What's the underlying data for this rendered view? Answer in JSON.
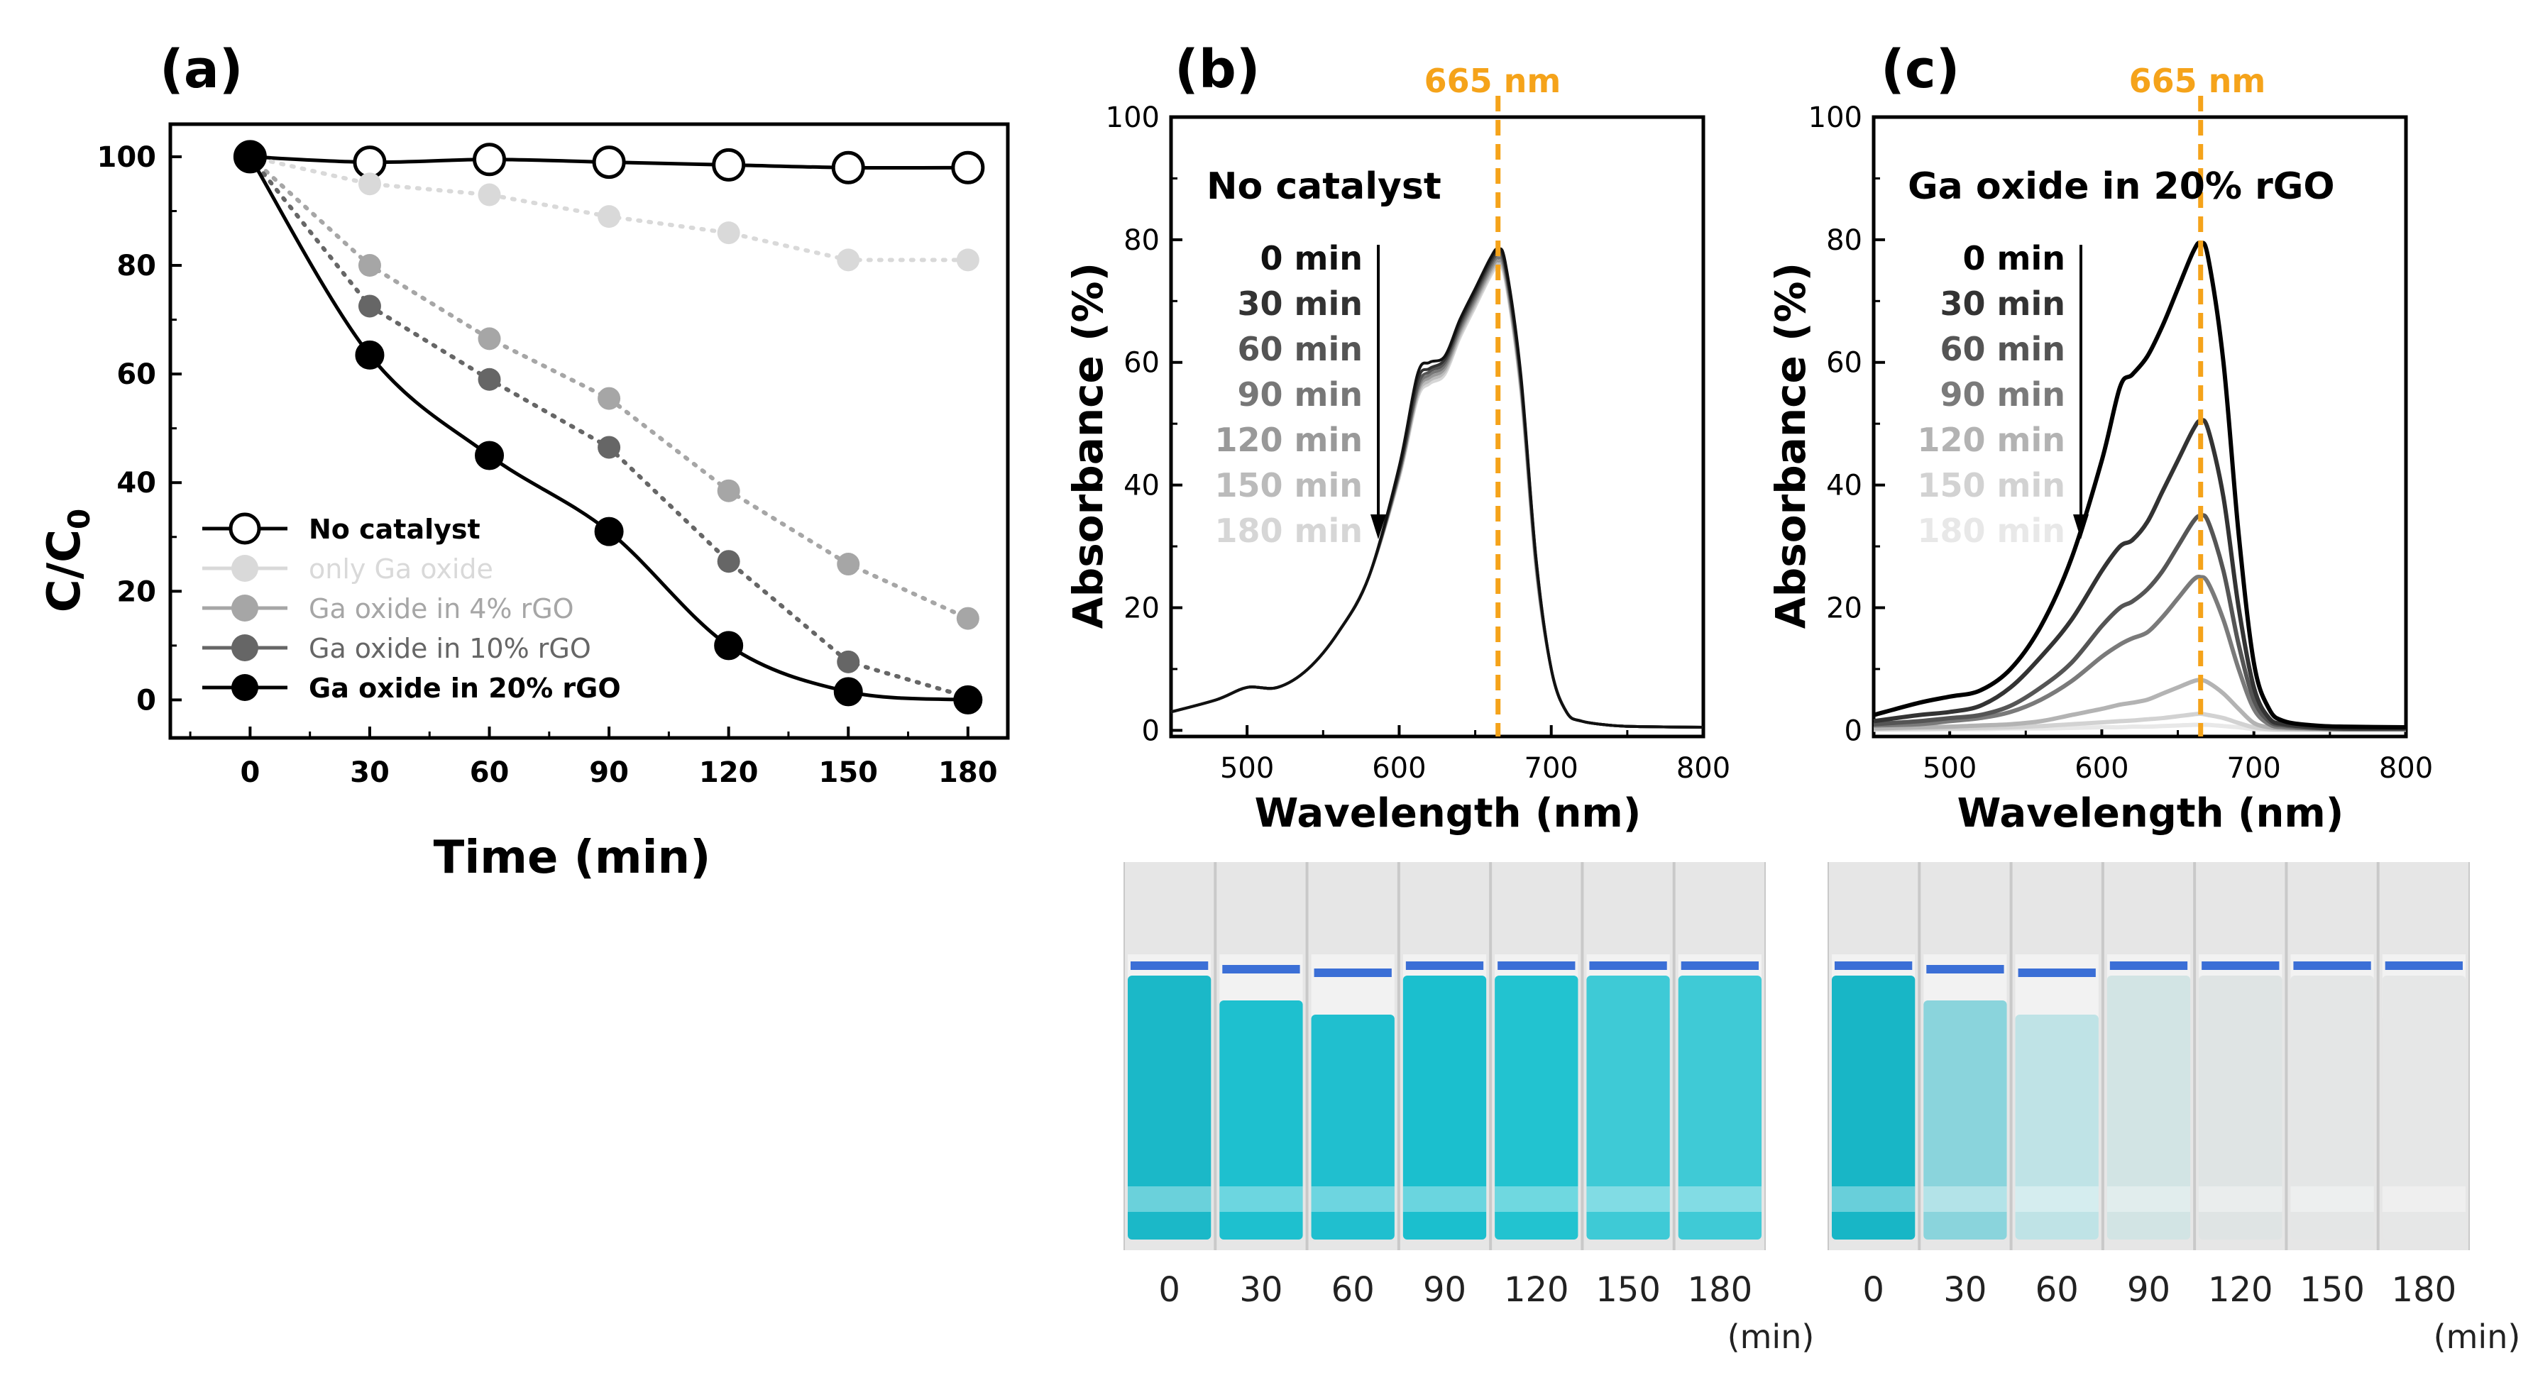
{
  "chart_data": [
    {
      "type": "line",
      "panel_label": "(a)",
      "xlabel": "Time (min)",
      "ylabel": "C/C",
      "ylabel_subscript": "0",
      "xlim": [
        -20,
        190
      ],
      "ylim": [
        -7,
        106
      ],
      "xticks": [
        0,
        30,
        60,
        90,
        120,
        150,
        180
      ],
      "yticks": [
        0,
        20,
        40,
        60,
        80,
        100
      ],
      "legend_position": "bottom-left",
      "series": [
        {
          "name": "No catalyst",
          "color": "#000000",
          "marker": "open-circle",
          "line": "solid",
          "x": [
            0,
            30,
            60,
            90,
            120,
            150,
            180
          ],
          "values": [
            100,
            99,
            99.5,
            99,
            98.5,
            98,
            98
          ]
        },
        {
          "name": "only Ga oxide",
          "color": "#d9d9d9",
          "marker": "filled-circle",
          "line": "dotted",
          "x": [
            0,
            30,
            60,
            90,
            120,
            150,
            180
          ],
          "values": [
            100,
            95,
            93,
            89,
            86,
            81,
            81
          ]
        },
        {
          "name": "Ga oxide in 4% rGO",
          "color": "#a6a6a6",
          "marker": "filled-circle",
          "line": "dotted",
          "x": [
            0,
            30,
            60,
            90,
            120,
            150,
            180
          ],
          "values": [
            100,
            80,
            66.5,
            55.5,
            38.5,
            25,
            15
          ]
        },
        {
          "name": "Ga oxide in 10% rGO",
          "color": "#666666",
          "marker": "filled-circle",
          "line": "dotted",
          "x": [
            0,
            30,
            60,
            90,
            120,
            150,
            180
          ],
          "values": [
            100,
            72.5,
            59,
            46.5,
            25.5,
            7,
            0.5
          ]
        },
        {
          "name": "Ga oxide in 20% rGO",
          "color": "#000000",
          "marker": "filled-circle",
          "line": "solid",
          "x": [
            0,
            30,
            60,
            90,
            120,
            150,
            180
          ],
          "values": [
            100,
            63.5,
            45,
            31,
            10,
            1.5,
            0
          ]
        }
      ]
    },
    {
      "type": "line",
      "panel_label": "(b)",
      "title": "No catalyst",
      "xlabel": "Wavelength (nm)",
      "ylabel": "Absorbance (%)",
      "xlim": [
        450,
        800
      ],
      "ylim": [
        -1,
        100
      ],
      "xticks": [
        500,
        600,
        700,
        800
      ],
      "yticks": [
        0,
        20,
        40,
        60,
        80,
        100
      ],
      "marker_line": {
        "x": 665,
        "label": "665 nm",
        "color": "#f5a31a"
      },
      "time_labels": [
        "0 min",
        "30 min",
        "60 min",
        "90 min",
        "120 min",
        "150 min",
        "180 min"
      ],
      "x": [
        450,
        480,
        500,
        520,
        540,
        560,
        580,
        600,
        612,
        620,
        630,
        640,
        650,
        660,
        665,
        670,
        680,
        690,
        700,
        710,
        720,
        740,
        760,
        800
      ],
      "series": [
        {
          "name": "0 min",
          "color": "#111111",
          "values": [
            3,
            5,
            7,
            7,
            10,
            16,
            25,
            43,
            58,
            60,
            61,
            67,
            72,
            77,
            78.5,
            76,
            58,
            28,
            10,
            3,
            1.5,
            0.8,
            0.6,
            0.5
          ]
        },
        {
          "name": "30 min",
          "color": "#333333",
          "values": [
            3,
            5,
            7,
            7,
            10,
            16,
            25,
            42.5,
            57,
            59,
            60.5,
            66.5,
            71.5,
            76.5,
            78,
            75.5,
            57.5,
            28,
            10,
            3,
            1.5,
            0.8,
            0.6,
            0.5
          ]
        },
        {
          "name": "60 min",
          "color": "#555555",
          "values": [
            3,
            5,
            7,
            7,
            10,
            16,
            25,
            42,
            56,
            58.5,
            60,
            66,
            71,
            76,
            77.5,
            75,
            57,
            27.5,
            10,
            3,
            1.5,
            0.8,
            0.6,
            0.5
          ]
        },
        {
          "name": "90 min",
          "color": "#777777",
          "values": [
            3,
            5,
            7,
            7,
            10,
            16,
            25,
            42,
            55.5,
            58,
            59.5,
            65.5,
            70.5,
            75.5,
            77,
            74.5,
            56.5,
            27,
            10,
            3,
            1.5,
            0.8,
            0.6,
            0.5
          ]
        },
        {
          "name": "120 min",
          "color": "#999999",
          "values": [
            3,
            5,
            7,
            7,
            10,
            16,
            25,
            41.5,
            55,
            57.5,
            59,
            65,
            70,
            75,
            76.5,
            74,
            56,
            27,
            10,
            3,
            1.5,
            0.8,
            0.6,
            0.5
          ]
        },
        {
          "name": "150 min",
          "color": "#bbbbbb",
          "values": [
            3,
            5,
            7,
            7,
            10,
            16,
            25,
            41.5,
            54.5,
            57,
            58.5,
            64.5,
            69.5,
            74.5,
            76,
            73.5,
            55.5,
            26.5,
            10,
            3,
            1.5,
            0.8,
            0.6,
            0.5
          ]
        },
        {
          "name": "180 min",
          "color": "#d6d6d6",
          "values": [
            3,
            5,
            7,
            7,
            10,
            16,
            25,
            41,
            54,
            56.5,
            58,
            64,
            69,
            74,
            75.5,
            73,
            55,
            26,
            10,
            3,
            1.5,
            0.8,
            0.6,
            0.5
          ]
        }
      ]
    },
    {
      "type": "line",
      "panel_label": "(c)",
      "title": "Ga oxide in 20% rGO",
      "xlabel": "Wavelength (nm)",
      "ylabel": "Absorbance (%)",
      "xlim": [
        450,
        800
      ],
      "ylim": [
        -1,
        100
      ],
      "xticks": [
        500,
        600,
        700,
        800
      ],
      "yticks": [
        0,
        20,
        40,
        60,
        80,
        100
      ],
      "marker_line": {
        "x": 665,
        "label": "665 nm",
        "color": "#f5a31a"
      },
      "time_labels": [
        "0 min",
        "30 min",
        "60 min",
        "90 min",
        "120 min",
        "150 min",
        "180 min"
      ],
      "x": [
        450,
        480,
        500,
        520,
        540,
        560,
        580,
        600,
        612,
        620,
        630,
        640,
        650,
        660,
        665,
        670,
        680,
        690,
        700,
        710,
        720,
        740,
        760,
        800
      ],
      "series": [
        {
          "name": "0 min",
          "color": "#000000",
          "values": [
            2.5,
            4.5,
            5.5,
            6.5,
            10,
            17,
            28,
            44,
            56,
            58,
            61,
            66,
            72,
            78,
            79.5,
            77,
            60,
            32,
            11,
            3.5,
            1.5,
            0.8,
            0.6,
            0.5
          ]
        },
        {
          "name": "30 min",
          "color": "#333333",
          "values": [
            1.5,
            2.5,
            3,
            4,
            7,
            12,
            18,
            26,
            30,
            31,
            34,
            39,
            44,
            49,
            50.5,
            49,
            38,
            20,
            7,
            2,
            1,
            0.5,
            0.3,
            0.3
          ]
        },
        {
          "name": "60 min",
          "color": "#555555",
          "values": [
            1,
            1.5,
            2,
            2.5,
            4,
            7,
            11,
            17,
            20,
            21,
            23,
            26,
            30,
            34,
            35,
            34,
            26,
            14,
            5,
            1.5,
            0.8,
            0.4,
            0.3,
            0.3
          ]
        },
        {
          "name": "90 min",
          "color": "#7a7a7a",
          "values": [
            0.8,
            1,
            1.5,
            2,
            3,
            5,
            8,
            12,
            14,
            15,
            16,
            18.5,
            21.5,
            24.5,
            25,
            24,
            18,
            10,
            3.5,
            1,
            0.5,
            0.3,
            0.2,
            0.2
          ]
        },
        {
          "name": "120 min",
          "color": "#b3b3b3",
          "values": [
            0.3,
            0.5,
            0.6,
            0.8,
            1,
            1.5,
            2.5,
            3.5,
            4.2,
            4.5,
            5,
            6,
            7,
            8,
            8.2,
            7.8,
            6,
            3.5,
            1.2,
            0.5,
            0.3,
            0.2,
            0.1,
            0.1
          ]
        },
        {
          "name": "150 min",
          "color": "#d2d2d2",
          "values": [
            0.2,
            0.3,
            0.3,
            0.4,
            0.5,
            0.7,
            1,
            1.3,
            1.5,
            1.6,
            1.8,
            2,
            2.3,
            2.6,
            2.7,
            2.5,
            2,
            1.2,
            0.5,
            0.2,
            0.1,
            0.1,
            0.1,
            0.1
          ]
        },
        {
          "name": "180 min",
          "color": "#e8e8e8",
          "values": [
            0.1,
            0.1,
            0.2,
            0.2,
            0.3,
            0.3,
            0.4,
            0.5,
            0.5,
            0.6,
            0.6,
            0.7,
            0.8,
            0.9,
            0.9,
            0.9,
            0.7,
            0.5,
            0.2,
            0.1,
            0.1,
            0.1,
            0.1,
            0.1
          ]
        }
      ]
    }
  ],
  "photos": [
    {
      "name": "no-catalyst-cuvettes",
      "labels": [
        "0",
        "30",
        "60",
        "90",
        "120",
        "150",
        "180"
      ],
      "unit": "(min)",
      "liquid_colors": [
        "#1bb8c8",
        "#1ec0cf",
        "#20bfcf",
        "#1bbfce",
        "#22c3d0",
        "#3ecad6",
        "#3fcad6"
      ]
    },
    {
      "name": "rgo-cuvettes",
      "labels": [
        "0",
        "30",
        "60",
        "90",
        "120",
        "150",
        "180"
      ],
      "unit": "(min)",
      "liquid_colors": [
        "#18b6c6",
        "#8ad4dc",
        "#bfe3e6",
        "#d2e4e4",
        "#dfe4e4",
        "#e4e6e6",
        "#e6e7e7"
      ]
    }
  ]
}
